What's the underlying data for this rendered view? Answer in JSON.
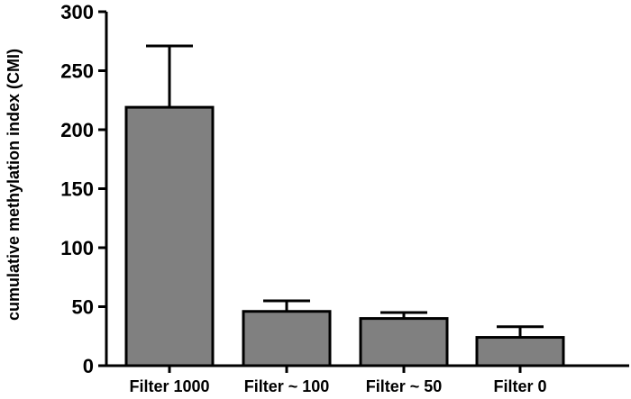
{
  "chart_data": {
    "type": "bar",
    "title": "",
    "xlabel": "",
    "ylabel": "cumulative methylation index (CMI)",
    "categories": [
      "Filter 1000",
      "Filter ~ 100",
      "Filter ~ 50",
      "Filter 0"
    ],
    "values": [
      219,
      46,
      40,
      24
    ],
    "error_upper": [
      271,
      55,
      45,
      33
    ],
    "ylim": [
      0,
      300
    ],
    "yticks": [
      "0",
      "50",
      "100",
      "150",
      "200",
      "250",
      "300"
    ],
    "grid": false,
    "legend": "none",
    "bar_color": "#808080",
    "edge_color": "#000000"
  }
}
